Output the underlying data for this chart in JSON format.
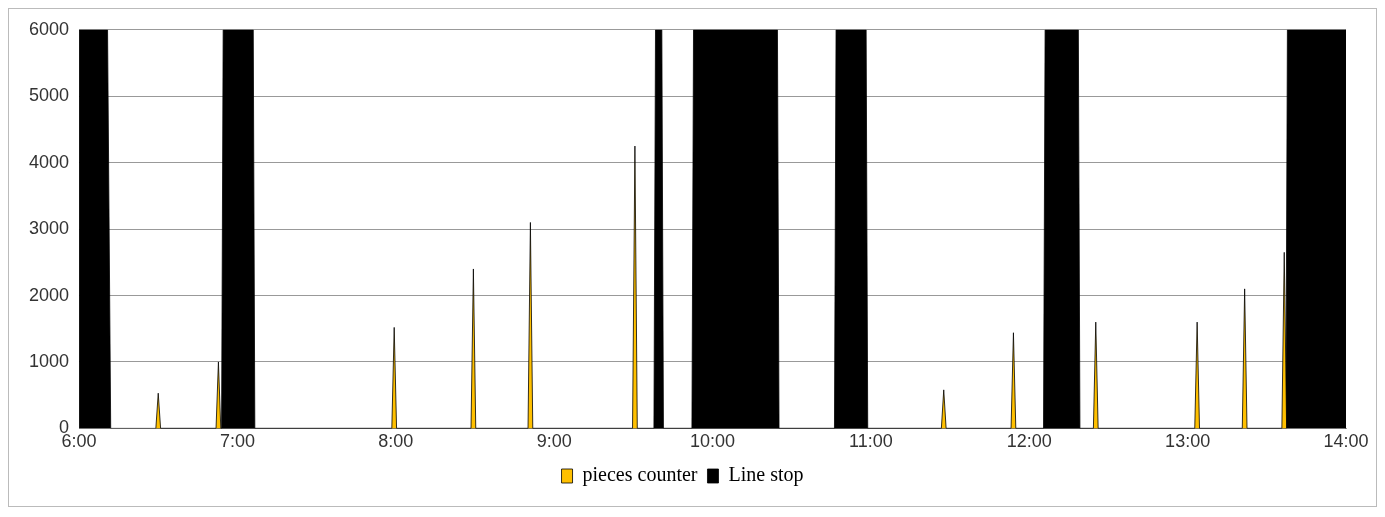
{
  "chart_data": {
    "type": "area",
    "xlim": [
      6,
      14
    ],
    "xticks": [
      {
        "value": 6,
        "label": "6:00"
      },
      {
        "value": 7,
        "label": "7:00"
      },
      {
        "value": 8,
        "label": "8:00"
      },
      {
        "value": 9,
        "label": "9:00"
      },
      {
        "value": 10,
        "label": "10:00"
      },
      {
        "value": 11,
        "label": "11:00"
      },
      {
        "value": 12,
        "label": "12:00"
      },
      {
        "value": 13,
        "label": "13:00"
      },
      {
        "value": 14,
        "label": "14:00"
      }
    ],
    "ylim": [
      0,
      6000
    ],
    "yticks": [
      0,
      1000,
      2000,
      3000,
      4000,
      5000,
      6000
    ],
    "grid": "y",
    "legend": "bottom",
    "series": [
      {
        "name": "pieces counter",
        "color": "#ffc000",
        "x": [
          6.485,
          6.5,
          6.515,
          6.865,
          6.88,
          6.895,
          7.975,
          7.99,
          8.005,
          8.475,
          8.49,
          8.505,
          8.835,
          8.85,
          8.865,
          9.495,
          9.51,
          9.525,
          11.445,
          11.46,
          11.475,
          11.885,
          11.9,
          11.915,
          12.405,
          12.42,
          12.435,
          13.045,
          13.06,
          13.075,
          13.345,
          13.36,
          13.375,
          13.595,
          13.61,
          13.625
        ],
        "values": [
          0,
          530,
          0,
          0,
          1000,
          0,
          0,
          1520,
          0,
          0,
          2400,
          0,
          0,
          3100,
          0,
          0,
          4250,
          0,
          0,
          580,
          0,
          0,
          1440,
          0,
          0,
          1600,
          0,
          0,
          1600,
          0,
          0,
          2100,
          0,
          0,
          2650,
          0
        ]
      },
      {
        "name": "Line stop",
        "color": "#000000",
        "x": [
          6,
          6,
          6.18,
          6.2,
          6.9,
          6.91,
          7.1,
          7.11,
          7.11,
          9.63,
          9.64,
          9.68,
          9.69,
          9.69,
          9.87,
          9.88,
          10.41,
          10.42,
          10.42,
          10.77,
          10.78,
          10.97,
          10.98,
          10.98,
          12.09,
          12.1,
          12.31,
          12.32,
          12.32,
          13.62,
          13.63,
          14,
          14
        ],
        "values": [
          6000,
          6000,
          6000,
          0,
          0,
          6000,
          6000,
          0,
          0,
          0,
          6000,
          6000,
          0,
          0,
          0,
          6000,
          6000,
          0,
          0,
          0,
          6000,
          6000,
          0,
          0,
          0,
          6000,
          6000,
          0,
          0,
          0,
          6000,
          6000,
          0
        ]
      }
    ]
  }
}
